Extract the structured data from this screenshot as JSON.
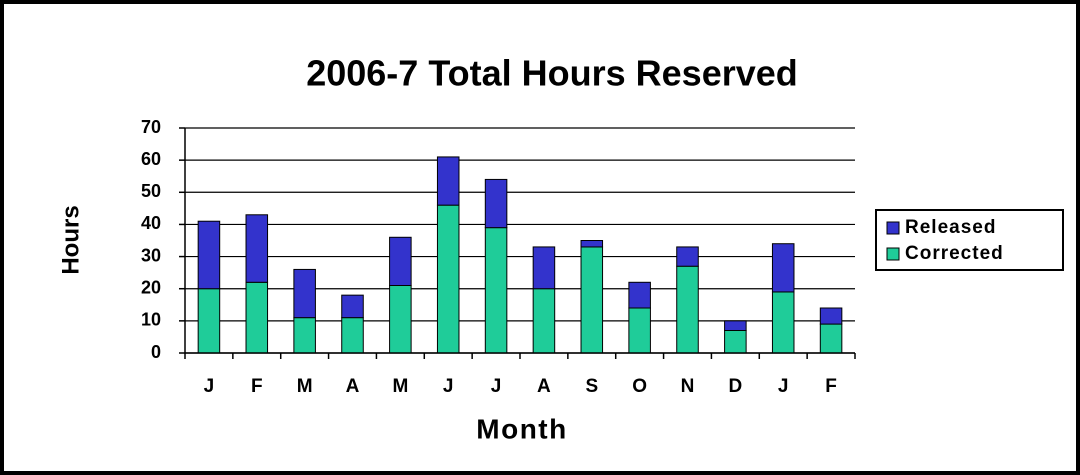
{
  "chart_data": {
    "type": "stacked_bar",
    "title": "2006-7 Total Hours Reserved",
    "x_label": "Month",
    "y_label": "Hours",
    "categories": [
      "J",
      "F",
      "M",
      "A",
      "M",
      "J",
      "J",
      "A",
      "S",
      "O",
      "N",
      "D",
      "J",
      "F"
    ],
    "series": [
      {
        "name": "Corrected",
        "color": "#1fcc99",
        "values": [
          20,
          22,
          11,
          11,
          21,
          46,
          39,
          20,
          33,
          14,
          27,
          7,
          19,
          9
        ]
      },
      {
        "name": "Released",
        "color": "#3333cc",
        "values": [
          21,
          21,
          15,
          7,
          15,
          15,
          15,
          13,
          2,
          8,
          6,
          3,
          15,
          5
        ]
      }
    ],
    "ylim": [
      0,
      70
    ],
    "yticks": [
      0,
      10,
      20,
      30,
      40,
      50,
      60,
      70
    ],
    "grid": true,
    "legend": "right"
  }
}
